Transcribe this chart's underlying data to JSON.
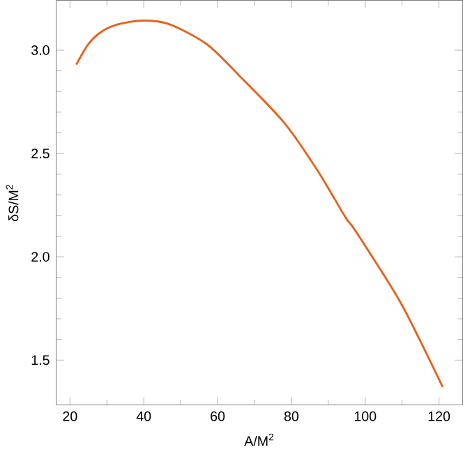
{
  "chart_data": {
    "type": "line",
    "xlabel": "A/M$^{2}$",
    "ylabel": "δS/M$^{2}$",
    "xlim": [
      16.3,
      126.4
    ],
    "ylim": [
      1.283,
      3.241
    ],
    "xticks": [
      20,
      40,
      60,
      80,
      100,
      120
    ],
    "yticks": [
      {
        "value": 1.5,
        "label": "1.5"
      },
      {
        "value": 2.0,
        "label": "2.0"
      },
      2.5,
      {
        "value": 3.0,
        "label": "3.0"
      }
    ],
    "grid": false,
    "line_style": "solid",
    "marker": "none",
    "series": [
      {
        "color": "#e5621e",
        "x": [
          21.7,
          25,
          28.6,
          33,
          39.8,
          47,
          57,
          65.7,
          78,
          87,
          94.7,
          97.2,
          108.9,
          115,
          121
        ],
        "values": [
          2.93,
          3.03,
          3.09,
          3.125,
          3.143,
          3.125,
          3.03,
          2.88,
          2.65,
          2.42,
          2.19,
          2.13,
          1.8,
          1.59,
          1.37
        ]
      }
    ]
  }
}
